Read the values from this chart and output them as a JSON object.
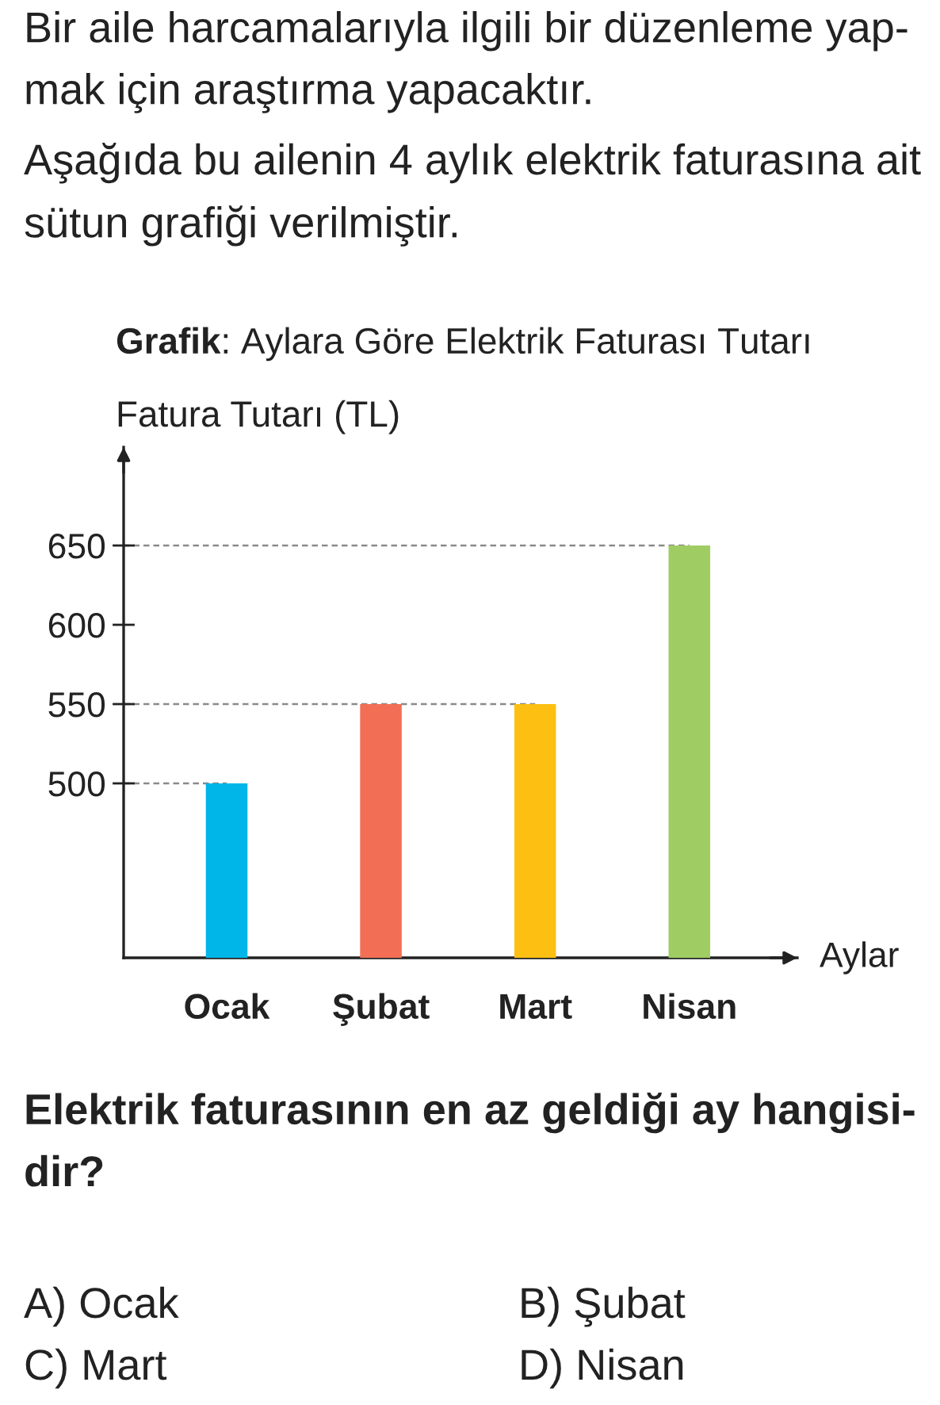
{
  "chart_data": {
    "type": "bar",
    "title": "Grafik: Aylara Göre Elektrik Faturası Tutarı",
    "xlabel": "Aylar",
    "ylabel": "Fatura Tutarı (TL)",
    "categories": [
      "Ocak",
      "Şubat",
      "Mart",
      "Nisan"
    ],
    "values": [
      500,
      550,
      550,
      650
    ],
    "colors": [
      "#00b5e8",
      "#f26f55",
      "#fcbf12",
      "#a0cd63"
    ],
    "ylim": [
      390,
      712
    ],
    "yticks": [
      500,
      550,
      600,
      650
    ],
    "ref_lines": [
      {
        "axis": "y",
        "value": 500,
        "color": "#8a8a8a",
        "line_style": "dashed"
      },
      {
        "axis": "y",
        "value": 550,
        "color": "#8a8a8a",
        "line_style": "dashed"
      },
      {
        "axis": "y",
        "value": 650,
        "color": "#8a8a8a",
        "line_style": "dashed"
      }
    ],
    "annotations": [
      "Bir aile harcamalarıyla ilgili bir düzenleme yap-\nmak için araştırma yapacaktır.",
      "Aşağıda bu ailenin 4 aylık elektrik faturasına ait\nsütun grafiği verilmiştir.",
      "Elektrik faturasının en az geldiği ay hangisi-\ndir?",
      "A) Ocak",
      "B) Şubat",
      "C) Mart",
      "D) Nisan"
    ]
  }
}
